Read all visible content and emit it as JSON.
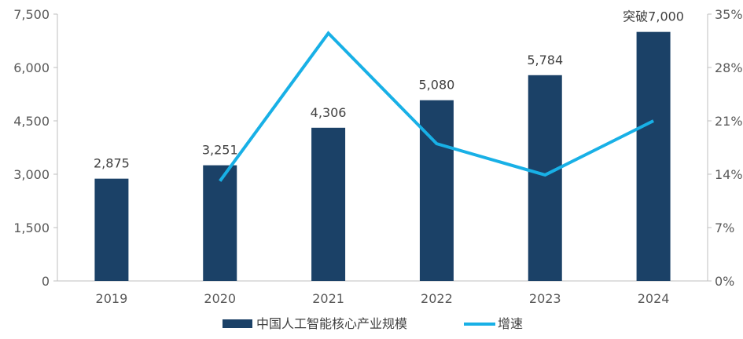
{
  "chart_data": {
    "type": "bar",
    "categories": [
      "2019",
      "2020",
      "2021",
      "2022",
      "2023",
      "2024"
    ],
    "series": [
      {
        "name": "中国人工智能核心产业规模",
        "type": "bar",
        "axis": "left",
        "color": "#1b4167",
        "values": [
          2875,
          3251,
          4306,
          5080,
          5784,
          7000
        ],
        "data_labels": [
          "2,875",
          "3,251",
          "4,306",
          "5,080",
          "5,784",
          "突破7,000"
        ]
      },
      {
        "name": "增速",
        "type": "line",
        "axis": "right",
        "color": "#18b0e6",
        "values": [
          null,
          13.1,
          32.5,
          18.0,
          13.9,
          21.0
        ]
      }
    ],
    "y_left": {
      "ylim": [
        0,
        7500
      ],
      "ticks": [
        0,
        1500,
        3000,
        4500,
        6000,
        7500
      ],
      "tick_labels": [
        "0",
        "1,500",
        "3,000",
        "4,500",
        "6,000",
        "7,500"
      ]
    },
    "y_right": {
      "ylim": [
        0,
        35
      ],
      "ticks": [
        0,
        7,
        14,
        21,
        28,
        35
      ],
      "tick_labels": [
        "0%",
        "7%",
        "14%",
        "21%",
        "28%",
        "35%"
      ]
    },
    "grid": false,
    "legend": "bottom-center"
  }
}
